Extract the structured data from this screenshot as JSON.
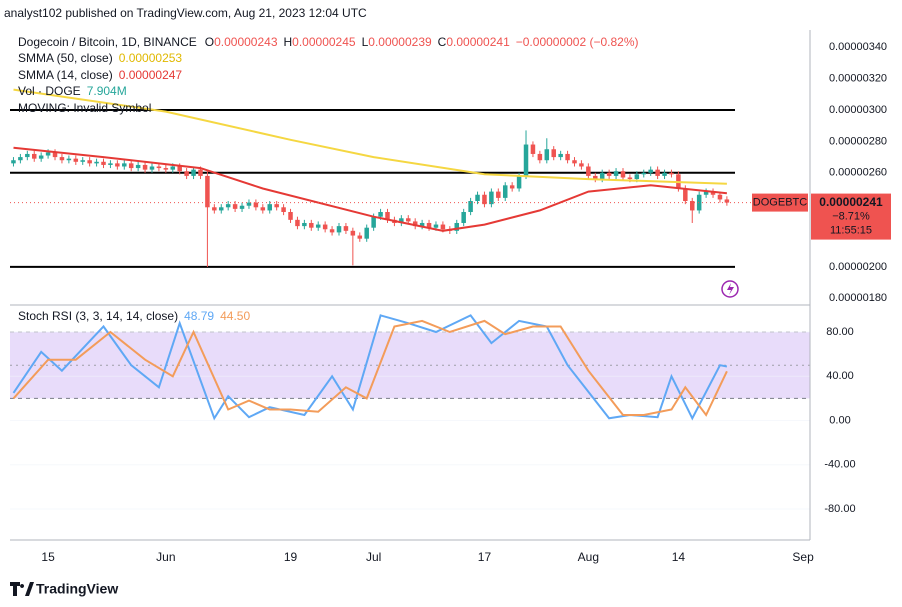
{
  "byline": "analyst102 published on TradingView.com, Aug 21, 2023 12:04 UTC",
  "chart_data": [
    {
      "type": "candlestick",
      "title": "Dogecoin / Bitcoin, 1D, BINANCE",
      "ohlc": [
        {
          "key": "O",
          "text": "0.00000243"
        },
        {
          "key": "H",
          "text": "0.00000245"
        },
        {
          "key": "L",
          "text": "0.00000239"
        },
        {
          "key": "C",
          "text": "0.00000241"
        }
      ],
      "change": "−0.00000002 (−0.82%)",
      "up_color": "#26a69a",
      "down_color": "#ef5350",
      "candles": [
        [
          2.66e-06,
          2.7e-06,
          2.64e-06,
          2.68e-06
        ],
        [
          2.68e-06,
          2.72e-06,
          2.66e-06,
          2.7e-06
        ],
        [
          2.7e-06,
          2.74e-06,
          2.68e-06,
          2.72e-06
        ],
        [
          2.72e-06,
          2.74e-06,
          2.67e-06,
          2.69e-06
        ],
        [
          2.69e-06,
          2.73e-06,
          2.67e-06,
          2.71e-06
        ],
        [
          2.71e-06,
          2.75e-06,
          2.69e-06,
          2.73e-06
        ],
        [
          2.73e-06,
          2.75e-06,
          2.68e-06,
          2.7e-06
        ],
        [
          2.7e-06,
          2.72e-06,
          2.66e-06,
          2.68e-06
        ],
        [
          2.68e-06,
          2.71e-06,
          2.66e-06,
          2.69e-06
        ],
        [
          2.69e-06,
          2.71e-06,
          2.65e-06,
          2.67e-06
        ],
        [
          2.67e-06,
          2.7e-06,
          2.65e-06,
          2.68e-06
        ],
        [
          2.68e-06,
          2.7e-06,
          2.64e-06,
          2.66e-06
        ],
        [
          2.66e-06,
          2.69e-06,
          2.64e-06,
          2.67e-06
        ],
        [
          2.67e-06,
          2.69e-06,
          2.63e-06,
          2.65e-06
        ],
        [
          2.65e-06,
          2.68e-06,
          2.63e-06,
          2.66e-06
        ],
        [
          2.66e-06,
          2.68e-06,
          2.62e-06,
          2.64e-06
        ],
        [
          2.64e-06,
          2.68e-06,
          2.62e-06,
          2.66e-06
        ],
        [
          2.66e-06,
          2.68e-06,
          2.61e-06,
          2.63e-06
        ],
        [
          2.63e-06,
          2.67e-06,
          2.61e-06,
          2.65e-06
        ],
        [
          2.65e-06,
          2.67e-06,
          2.6e-06,
          2.62e-06
        ],
        [
          2.62e-06,
          2.66e-06,
          2.6e-06,
          2.64e-06
        ],
        [
          2.64e-06,
          2.66e-06,
          2.61e-06,
          2.63e-06
        ],
        [
          2.63e-06,
          2.65e-06,
          2.6e-06,
          2.62e-06
        ],
        [
          2.62e-06,
          2.66e-06,
          2.6e-06,
          2.64e-06
        ],
        [
          2.64e-06,
          2.66e-06,
          2.59e-06,
          2.61e-06
        ],
        [
          2.61e-06,
          2.63e-06,
          2.56e-06,
          2.58e-06
        ],
        [
          2.58e-06,
          2.64e-06,
          2.56e-06,
          2.62e-06
        ],
        [
          2.62e-06,
          2.64e-06,
          2.56e-06,
          2.58e-06
        ],
        [
          2.58e-06,
          2.62e-06,
          2e-06,
          2.38e-06
        ],
        [
          2.38e-06,
          2.4e-06,
          2.34e-06,
          2.36e-06
        ],
        [
          2.36e-06,
          2.4e-06,
          2.34e-06,
          2.38e-06
        ],
        [
          2.38e-06,
          2.42e-06,
          2.36e-06,
          2.4e-06
        ],
        [
          2.4e-06,
          2.42e-06,
          2.35e-06,
          2.37e-06
        ],
        [
          2.37e-06,
          2.41e-06,
          2.35e-06,
          2.39e-06
        ],
        [
          2.39e-06,
          2.43e-06,
          2.37e-06,
          2.41e-06
        ],
        [
          2.41e-06,
          2.43e-06,
          2.36e-06,
          2.38e-06
        ],
        [
          2.38e-06,
          2.4e-06,
          2.34e-06,
          2.36e-06
        ],
        [
          2.36e-06,
          2.42e-06,
          2.34e-06,
          2.4e-06
        ],
        [
          2.4e-06,
          2.42e-06,
          2.36e-06,
          2.38e-06
        ],
        [
          2.38e-06,
          2.4e-06,
          2.33e-06,
          2.35e-06
        ],
        [
          2.35e-06,
          2.37e-06,
          2.28e-06,
          2.3e-06
        ],
        [
          2.3e-06,
          2.32e-06,
          2.24e-06,
          2.26e-06
        ],
        [
          2.26e-06,
          2.3e-06,
          2.24e-06,
          2.28e-06
        ],
        [
          2.28e-06,
          2.3e-06,
          2.23e-06,
          2.25e-06
        ],
        [
          2.25e-06,
          2.29e-06,
          2.23e-06,
          2.27e-06
        ],
        [
          2.27e-06,
          2.29e-06,
          2.22e-06,
          2.24e-06
        ],
        [
          2.24e-06,
          2.26e-06,
          2.2e-06,
          2.22e-06
        ],
        [
          2.22e-06,
          2.28e-06,
          2.2e-06,
          2.26e-06
        ],
        [
          2.26e-06,
          2.28e-06,
          2.21e-06,
          2.23e-06
        ],
        [
          2.23e-06,
          2.25e-06,
          2.01e-06,
          2.2e-06
        ],
        [
          2.2e-06,
          2.22e-06,
          2.16e-06,
          2.18e-06
        ],
        [
          2.18e-06,
          2.27e-06,
          2.16e-06,
          2.25e-06
        ],
        [
          2.25e-06,
          2.34e-06,
          2.23e-06,
          2.32e-06
        ],
        [
          2.32e-06,
          2.37e-06,
          2.3e-06,
          2.35e-06
        ],
        [
          2.35e-06,
          2.37e-06,
          2.28e-06,
          2.3e-06
        ],
        [
          2.3e-06,
          2.32e-06,
          2.26e-06,
          2.28e-06
        ],
        [
          2.28e-06,
          2.33e-06,
          2.26e-06,
          2.31e-06
        ],
        [
          2.31e-06,
          2.33e-06,
          2.27e-06,
          2.29e-06
        ],
        [
          2.29e-06,
          2.31e-06,
          2.24e-06,
          2.26e-06
        ],
        [
          2.26e-06,
          2.3e-06,
          2.24e-06,
          2.28e-06
        ],
        [
          2.28e-06,
          2.3e-06,
          2.23e-06,
          2.25e-06
        ],
        [
          2.25e-06,
          2.29e-06,
          2.23e-06,
          2.27e-06
        ],
        [
          2.27e-06,
          2.29e-06,
          2.22e-06,
          2.24e-06
        ],
        [
          2.24e-06,
          2.26e-06,
          2.21e-06,
          2.23e-06
        ],
        [
          2.23e-06,
          2.3e-06,
          2.21e-06,
          2.28e-06
        ],
        [
          2.28e-06,
          2.37e-06,
          2.26e-06,
          2.35e-06
        ],
        [
          2.35e-06,
          2.44e-06,
          2.33e-06,
          2.42e-06
        ],
        [
          2.42e-06,
          2.48e-06,
          2.4e-06,
          2.46e-06
        ],
        [
          2.46e-06,
          2.48e-06,
          2.38e-06,
          2.4e-06
        ],
        [
          2.4e-06,
          2.5e-06,
          2.38e-06,
          2.48e-06
        ],
        [
          2.48e-06,
          2.5e-06,
          2.42e-06,
          2.44e-06
        ],
        [
          2.44e-06,
          2.54e-06,
          2.42e-06,
          2.52e-06
        ],
        [
          2.52e-06,
          2.54e-06,
          2.48e-06,
          2.5e-06
        ],
        [
          2.5e-06,
          2.6e-06,
          2.48e-06,
          2.58e-06
        ],
        [
          2.58e-06,
          2.87e-06,
          2.56e-06,
          2.78e-06
        ],
        [
          2.78e-06,
          2.8e-06,
          2.7e-06,
          2.72e-06
        ],
        [
          2.72e-06,
          2.74e-06,
          2.66e-06,
          2.68e-06
        ],
        [
          2.68e-06,
          2.82e-06,
          2.66e-06,
          2.75e-06
        ],
        [
          2.75e-06,
          2.77e-06,
          2.68e-06,
          2.7e-06
        ],
        [
          2.7e-06,
          2.74e-06,
          2.68e-06,
          2.72e-06
        ],
        [
          2.72e-06,
          2.74e-06,
          2.66e-06,
          2.68e-06
        ],
        [
          2.68e-06,
          2.7e-06,
          2.64e-06,
          2.66e-06
        ],
        [
          2.66e-06,
          2.68e-06,
          2.62e-06,
          2.64e-06
        ],
        [
          2.64e-06,
          2.66e-06,
          2.56e-06,
          2.58e-06
        ],
        [
          2.58e-06,
          2.6e-06,
          2.54e-06,
          2.56e-06
        ],
        [
          2.56e-06,
          2.62e-06,
          2.54e-06,
          2.6e-06
        ],
        [
          2.6e-06,
          2.62e-06,
          2.56e-06,
          2.58e-06
        ],
        [
          2.58e-06,
          2.63e-06,
          2.56e-06,
          2.61e-06
        ],
        [
          2.61e-06,
          2.63e-06,
          2.55e-06,
          2.57e-06
        ],
        [
          2.57e-06,
          2.59e-06,
          2.54e-06,
          2.56e-06
        ],
        [
          2.56e-06,
          2.61e-06,
          2.54e-06,
          2.59e-06
        ],
        [
          2.59e-06,
          2.62e-06,
          2.57e-06,
          2.6e-06
        ],
        [
          2.6e-06,
          2.64e-06,
          2.58e-06,
          2.62e-06
        ],
        [
          2.62e-06,
          2.64e-06,
          2.56e-06,
          2.58e-06
        ],
        [
          2.58e-06,
          2.62e-06,
          2.56e-06,
          2.6e-06
        ],
        [
          2.6e-06,
          2.62e-06,
          2.57e-06,
          2.59e-06
        ],
        [
          2.59e-06,
          2.61e-06,
          2.48e-06,
          2.5e-06
        ],
        [
          2.5e-06,
          2.52e-06,
          2.4e-06,
          2.42e-06
        ],
        [
          2.42e-06,
          2.44e-06,
          2.28e-06,
          2.36e-06
        ],
        [
          2.36e-06,
          2.48e-06,
          2.34e-06,
          2.46e-06
        ],
        [
          2.46e-06,
          2.5e-06,
          2.44e-06,
          2.48e-06
        ],
        [
          2.48e-06,
          2.5e-06,
          2.44e-06,
          2.46e-06
        ],
        [
          2.46e-06,
          2.48e-06,
          2.41e-06,
          2.43e-06
        ],
        [
          2.43e-06,
          2.45e-06,
          2.39e-06,
          2.41e-06
        ]
      ],
      "xlim": [
        -0.5,
        115
      ],
      "xticks": [
        {
          "value": 5,
          "label": "15"
        },
        {
          "value": 22,
          "label": "Jun"
        },
        {
          "value": 40,
          "label": "19"
        },
        {
          "value": 52,
          "label": "Jul"
        },
        {
          "value": 68,
          "label": "17"
        },
        {
          "value": 83,
          "label": "Aug"
        },
        {
          "value": 96,
          "label": "14"
        },
        {
          "value": 114,
          "label": "Sep"
        }
      ],
      "ylim": [
        1.77e-06,
        3.51e-06
      ],
      "yticks": [
        {
          "value": 3.4e-06,
          "label": "0.00000340"
        },
        {
          "value": 3.2e-06,
          "label": "0.00000320"
        },
        {
          "value": 3e-06,
          "label": "0.00000300"
        },
        {
          "value": 2.8e-06,
          "label": "0.00000280"
        },
        {
          "value": 2.6e-06,
          "label": "0.00000260"
        },
        {
          "value": 2e-06,
          "label": "0.00000200"
        },
        {
          "value": 1.8e-06,
          "label": "0.00000180"
        }
      ],
      "levels": [
        3e-06,
        2.6e-06,
        2e-06
      ],
      "series": [
        {
          "name": "SMMA (50, close)",
          "value_label": "0.00000253",
          "color": "#f5d742",
          "x": [
            0,
            22,
            40,
            52,
            68,
            83,
            103
          ],
          "values": [
            3.13e-06,
            2.99e-06,
            2.81e-06,
            2.7e-06,
            2.59e-06,
            2.56e-06,
            2.53e-06
          ]
        },
        {
          "name": "SMMA (14, close)",
          "value_label": "0.00000247",
          "color": "#e53935",
          "x": [
            0,
            13,
            27,
            36,
            52,
            62,
            68,
            76,
            83,
            92,
            103
          ],
          "values": [
            2.76e-06,
            2.7e-06,
            2.63e-06,
            2.5e-06,
            2.32e-06,
            2.23e-06,
            2.27e-06,
            2.36e-06,
            2.48e-06,
            2.52e-06,
            2.47e-06
          ]
        }
      ],
      "volume": {
        "name": "Vol · DOGE",
        "value_label": "7.904M"
      },
      "notice": "MOVING: Invalid Symbol",
      "price_tag": {
        "symbol": "DOGEBTC",
        "price": "0.00000241",
        "change": "−8.71%",
        "countdown": "11:55:15"
      }
    },
    {
      "type": "line",
      "title": "Stoch RSI (3, 3, 14, 14, close)",
      "xlim": [
        -0.5,
        115
      ],
      "ylim": [
        -108,
        101.7
      ],
      "yticks": [
        {
          "value": 80,
          "label": "80.00"
        },
        {
          "value": 40,
          "label": "40.00"
        },
        {
          "value": 0,
          "label": "0.00"
        },
        {
          "value": -40,
          "label": "-40.00"
        },
        {
          "value": -80,
          "label": "-80.00"
        }
      ],
      "band": [
        20,
        80
      ],
      "midline": 50,
      "band_color": "#e8dcfa",
      "series": [
        {
          "value_label": "48.79",
          "color": "#5fa8f5",
          "x": [
            0,
            4,
            7,
            13,
            17,
            21,
            24,
            29,
            31,
            34,
            37,
            42,
            46,
            49,
            53,
            57,
            61,
            66,
            69,
            73,
            77,
            80,
            86,
            89,
            93,
            95,
            98,
            102,
            103
          ],
          "values": [
            25,
            62,
            45,
            85,
            50,
            30,
            88,
            2,
            22,
            3,
            12,
            5,
            40,
            10,
            95,
            88,
            80,
            95,
            70,
            90,
            85,
            50,
            2,
            5,
            3,
            40,
            2,
            50,
            48.79
          ]
        },
        {
          "value_label": "44.50",
          "color": "#f39c5a",
          "x": [
            0,
            5,
            9,
            14,
            19,
            23,
            26,
            31,
            34,
            37,
            40,
            44,
            48,
            51,
            55,
            59,
            63,
            68,
            71,
            75,
            79,
            83,
            88,
            91,
            95,
            97,
            100,
            103
          ],
          "values": [
            20,
            55,
            55,
            80,
            55,
            40,
            80,
            10,
            18,
            10,
            10,
            8,
            30,
            20,
            85,
            90,
            80,
            90,
            78,
            85,
            85,
            45,
            5,
            5,
            10,
            30,
            5,
            44.5
          ]
        }
      ]
    }
  ],
  "footer": "TradingView"
}
